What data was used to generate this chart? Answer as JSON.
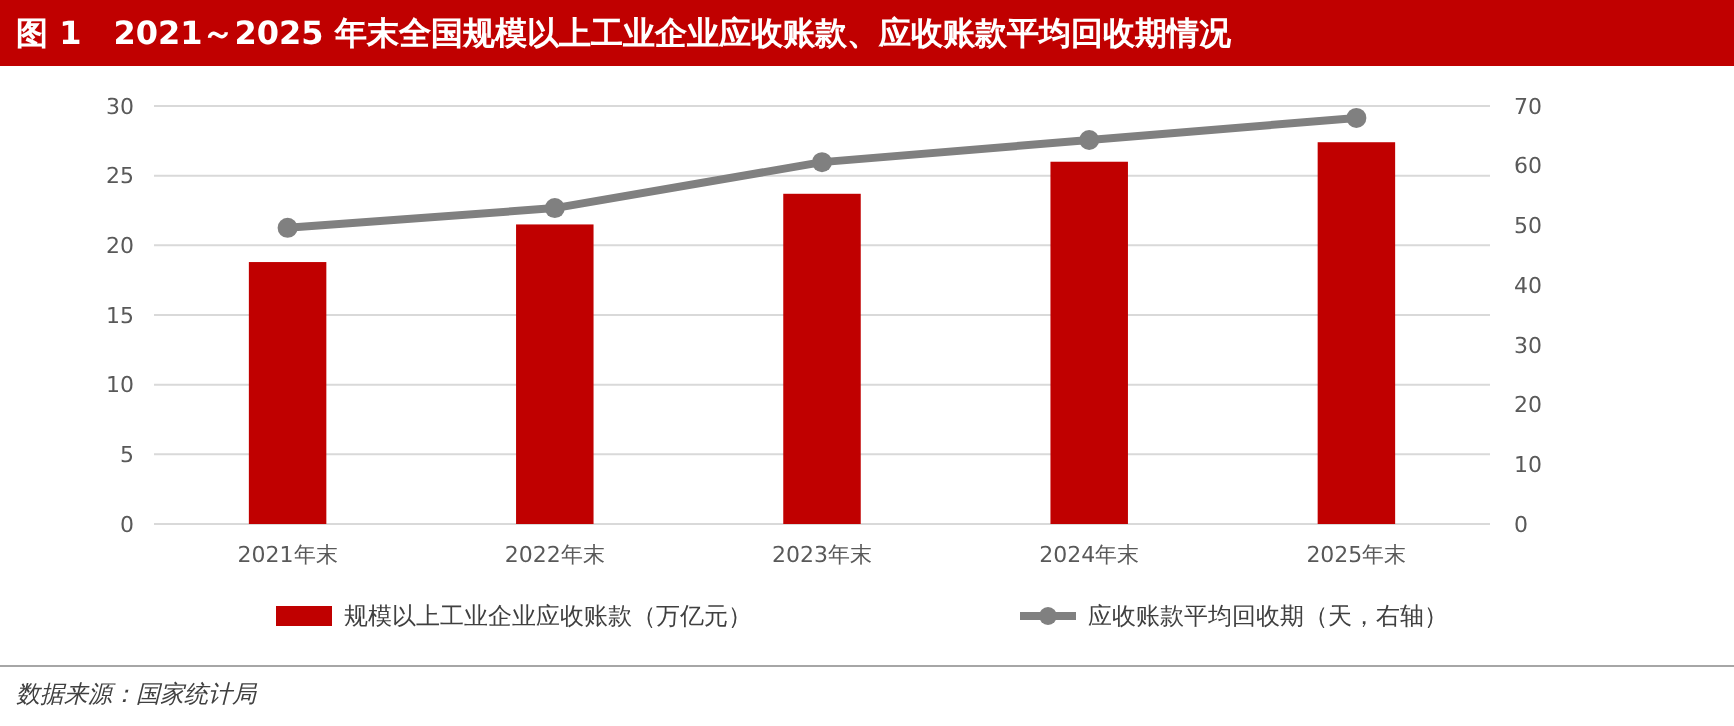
{
  "chart_data": {
    "type": "bar",
    "title": "图 1　2021～2025 年末全国规模以上工业企业应收账款、应收账款平均回收期情况",
    "categories": [
      "2021年末",
      "2022年末",
      "2023年末",
      "2024年末",
      "2025年末"
    ],
    "series": [
      {
        "name": "规模以上工业企业应收账款（万亿元）",
        "color": "#c00000",
        "values": [
          18.8,
          21.5,
          23.7,
          26.0,
          27.4
        ]
      },
      {
        "name": "应收账款平均回收期（天，右轴）",
        "type": "line",
        "axis": "y2",
        "color": "#808080",
        "marker": "circle",
        "values": [
          49.6,
          52.9,
          60.6,
          64.3,
          68.0
        ]
      }
    ],
    "ylim": [
      0,
      30
    ],
    "yticks": [
      0,
      5,
      10,
      15,
      20,
      25,
      30
    ],
    "y2lim": [
      0,
      70
    ],
    "y2ticks": [
      0,
      10,
      20,
      30,
      40,
      50,
      60,
      70
    ],
    "grid": "y",
    "legend": "bottom",
    "annotations": [
      "数据来源：国家统计局"
    ]
  }
}
